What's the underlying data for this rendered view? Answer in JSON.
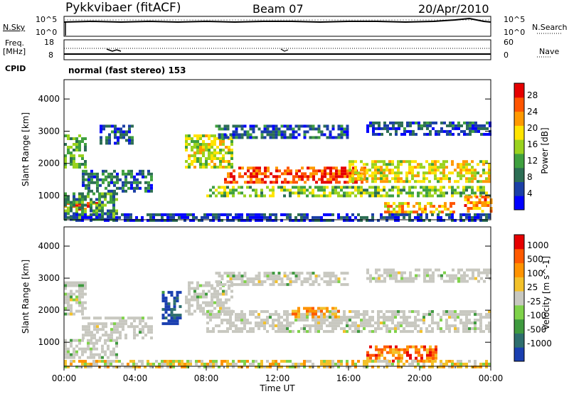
{
  "header": {
    "radar": "Pykkvibaer (fitACF)",
    "beam": "Beam 07",
    "date": "20/Apr/2010"
  },
  "top_panels": {
    "nsky_label": "N.Sky",
    "nsky_ticks": [
      "10^5",
      "10^0"
    ],
    "nsearch_label": "N.Search",
    "nsearch_ticks": [
      "10^5",
      "10^0"
    ],
    "freq_label_line1": "Freq.",
    "freq_label_line2": "[MHz]",
    "freq_ticks": [
      "18",
      "8"
    ],
    "nave_label": "Nave",
    "nave_ticks": [
      "60",
      "0"
    ],
    "cpid_label": "CPID",
    "cpid_text": "normal (fast stereo) 153"
  },
  "chart_data": [
    {
      "type": "heatmap",
      "panel": "power",
      "ylabel": "Slant Range [km]",
      "y_ticks": [
        1000,
        2000,
        3000,
        4000
      ],
      "ylim": [
        250,
        4600
      ],
      "xlim": [
        "00:00",
        "24:00"
      ],
      "colorbar": {
        "label": "Power [dB]",
        "ticks": [
          4,
          8,
          12,
          16,
          20,
          24,
          28
        ],
        "range": [
          0,
          31
        ],
        "colors": [
          "#0000ff",
          "#1b3fa6",
          "#2c6e54",
          "#3fa03f",
          "#9ad21e",
          "#ffe400",
          "#ff9900",
          "#ff5500",
          "#e60000"
        ]
      },
      "bands": [
        {
          "t0": 0.0,
          "t1": 2.2,
          "r0": 550,
          "r1": 800,
          "level": 0.8
        },
        {
          "t0": 0.0,
          "t1": 3.0,
          "r0": 300,
          "r1": 1100,
          "level": 0.35
        },
        {
          "t0": 0.0,
          "t1": 1.2,
          "r0": 1900,
          "r1": 2900,
          "level": 0.4
        },
        {
          "t0": 1.0,
          "t1": 5.0,
          "r0": 1100,
          "r1": 1800,
          "level": 0.25
        },
        {
          "t0": 2.0,
          "t1": 3.8,
          "r0": 2600,
          "r1": 3200,
          "level": 0.2
        },
        {
          "t0": 6.8,
          "t1": 9.5,
          "r0": 1900,
          "r1": 2900,
          "level": 0.55
        },
        {
          "t0": 8.0,
          "t1": 24.0,
          "r0": 1000,
          "r1": 1300,
          "level": 0.45
        },
        {
          "t0": 9.0,
          "t1": 17.0,
          "r0": 1400,
          "r1": 1900,
          "level": 0.85
        },
        {
          "t0": 16.0,
          "t1": 24.0,
          "r0": 1400,
          "r1": 2100,
          "level": 0.6
        },
        {
          "t0": 18.0,
          "t1": 22.0,
          "r0": 450,
          "r1": 800,
          "level": 0.7
        },
        {
          "t0": 8.5,
          "t1": 16.0,
          "r0": 2800,
          "r1": 3200,
          "level": 0.2
        },
        {
          "t0": 17.0,
          "t1": 24.0,
          "r0": 2900,
          "r1": 3300,
          "level": 0.2
        },
        {
          "t0": 0.0,
          "t1": 24.0,
          "r0": 250,
          "r1": 450,
          "level": 0.15
        },
        {
          "t0": 22.5,
          "t1": 24.0,
          "r0": 500,
          "r1": 1000,
          "level": 0.75
        }
      ]
    },
    {
      "type": "heatmap",
      "panel": "velocity",
      "ylabel": "Slant Range [km]",
      "y_ticks": [
        1000,
        2000,
        3000,
        4000
      ],
      "ylim": [
        250,
        4600
      ],
      "xlim": [
        "00:00",
        "24:00"
      ],
      "xlabel": "Time UT",
      "x_ticks": [
        "00:00",
        "04:00",
        "08:00",
        "12:00",
        "16:00",
        "20:00",
        "00:00"
      ],
      "colorbar": {
        "label": "Velocity [m s^-1]",
        "ticks": [
          1000,
          500,
          100,
          25,
          -25,
          -100,
          -500,
          -1000
        ],
        "colors": [
          "#1a3fb0",
          "#2e6e6e",
          "#3f9a3f",
          "#7fd24a",
          "#c8c8c0",
          "#f3c12a",
          "#ff9300",
          "#ff5a00",
          "#e60000"
        ]
      },
      "bands": [
        {
          "t0": 0.0,
          "t1": 3.0,
          "r0": 550,
          "r1": 1100,
          "level": 0.45
        },
        {
          "t0": 0.0,
          "t1": 1.2,
          "r0": 1900,
          "r1": 2900,
          "level": 0.45
        },
        {
          "t0": 1.0,
          "t1": 5.0,
          "r0": 1100,
          "r1": 1800,
          "level": 0.45
        },
        {
          "t0": 6.8,
          "t1": 9.5,
          "r0": 1900,
          "r1": 2900,
          "level": 0.45
        },
        {
          "t0": 8.0,
          "t1": 24.0,
          "r0": 1300,
          "r1": 2000,
          "level": 0.45
        },
        {
          "t0": 12.8,
          "t1": 15.5,
          "r0": 1800,
          "r1": 2100,
          "level": 0.7
        },
        {
          "t0": 17.0,
          "t1": 21.0,
          "r0": 400,
          "r1": 900,
          "level": 0.8
        },
        {
          "t0": 5.5,
          "t1": 6.5,
          "r0": 1600,
          "r1": 2600,
          "level": 0.05
        },
        {
          "t0": 8.5,
          "t1": 16.0,
          "r0": 2800,
          "r1": 3200,
          "level": 0.45
        },
        {
          "t0": 17.0,
          "t1": 24.0,
          "r0": 2900,
          "r1": 3300,
          "level": 0.45
        },
        {
          "t0": 0.0,
          "t1": 24.0,
          "r0": 250,
          "r1": 450,
          "level": 0.55
        }
      ]
    }
  ]
}
